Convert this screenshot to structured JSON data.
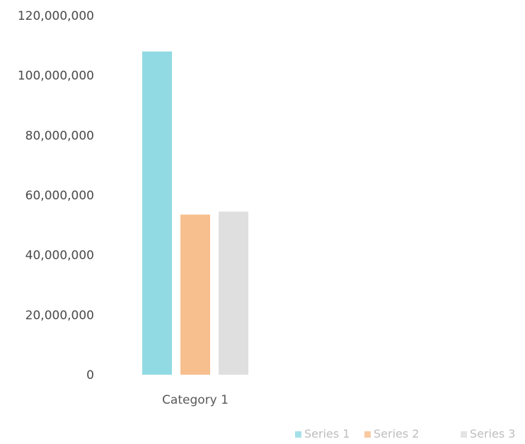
{
  "chart_data": {
    "type": "bar",
    "categories": [
      "Category 1"
    ],
    "series": [
      {
        "name": "Series 1",
        "values": [
          108000000
        ],
        "color": "#7fd3de"
      },
      {
        "name": "Series 2",
        "values": [
          53500000
        ],
        "color": "#f6b47a"
      },
      {
        "name": "Series 3",
        "values": [
          54500000
        ],
        "color": "#d9d9d9"
      }
    ],
    "y_ticks": [
      "0",
      "20,000,000",
      "40,000,000",
      "60,000,000",
      "80,000,000",
      "100,000,000",
      "120,000,000"
    ],
    "ylim": [
      0,
      120000000
    ],
    "grid": false,
    "legend_position": "bottom-right",
    "title": "",
    "xlabel": "",
    "ylabel": ""
  }
}
